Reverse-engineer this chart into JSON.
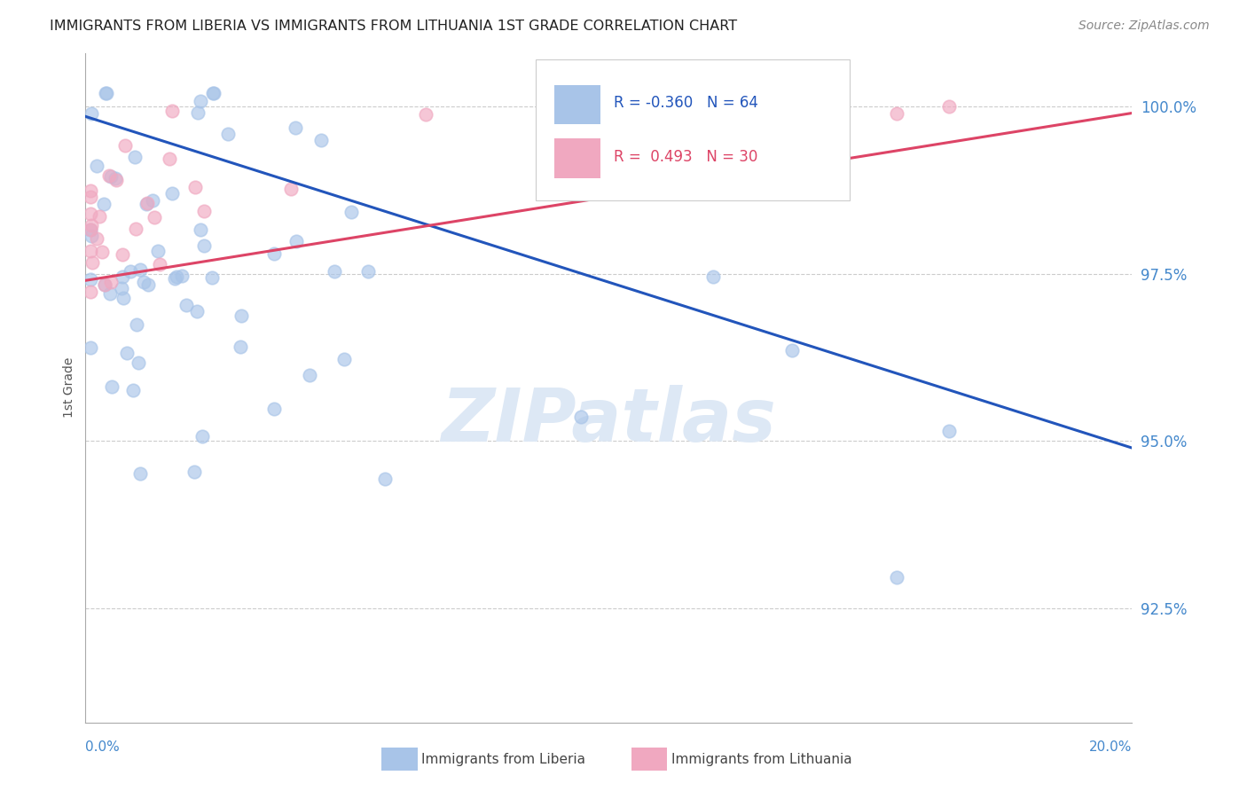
{
  "title": "IMMIGRANTS FROM LIBERIA VS IMMIGRANTS FROM LITHUANIA 1ST GRADE CORRELATION CHART",
  "source": "Source: ZipAtlas.com",
  "ylabel": "1st Grade",
  "xlim": [
    0.0,
    0.2
  ],
  "ylim": [
    0.908,
    1.008
  ],
  "yticks": [
    0.925,
    0.95,
    0.975,
    1.0
  ],
  "ytick_labels": [
    "92.5%",
    "95.0%",
    "97.5%",
    "100.0%"
  ],
  "legend_r_blue": "R = -0.360",
  "legend_n_blue": "N = 64",
  "legend_r_pink": "R =  0.493",
  "legend_n_pink": "N = 30",
  "legend_label_blue": "Immigrants from Liberia",
  "legend_label_pink": "Immigrants from Lithuania",
  "blue_color": "#a8c4e8",
  "pink_color": "#f0a8c0",
  "trend_blue": "#2255bb",
  "trend_pink": "#dd4466",
  "background_color": "#ffffff",
  "grid_color": "#cccccc",
  "title_color": "#222222",
  "axis_color": "#4488cc",
  "watermark": "ZIPatlas",
  "trend_blue_x0": 0.0,
  "trend_blue_y0": 0.9985,
  "trend_blue_x1": 0.2,
  "trend_blue_y1": 0.949,
  "trend_pink_x0": 0.0,
  "trend_pink_y0": 0.974,
  "trend_pink_x1": 0.2,
  "trend_pink_y1": 0.999
}
